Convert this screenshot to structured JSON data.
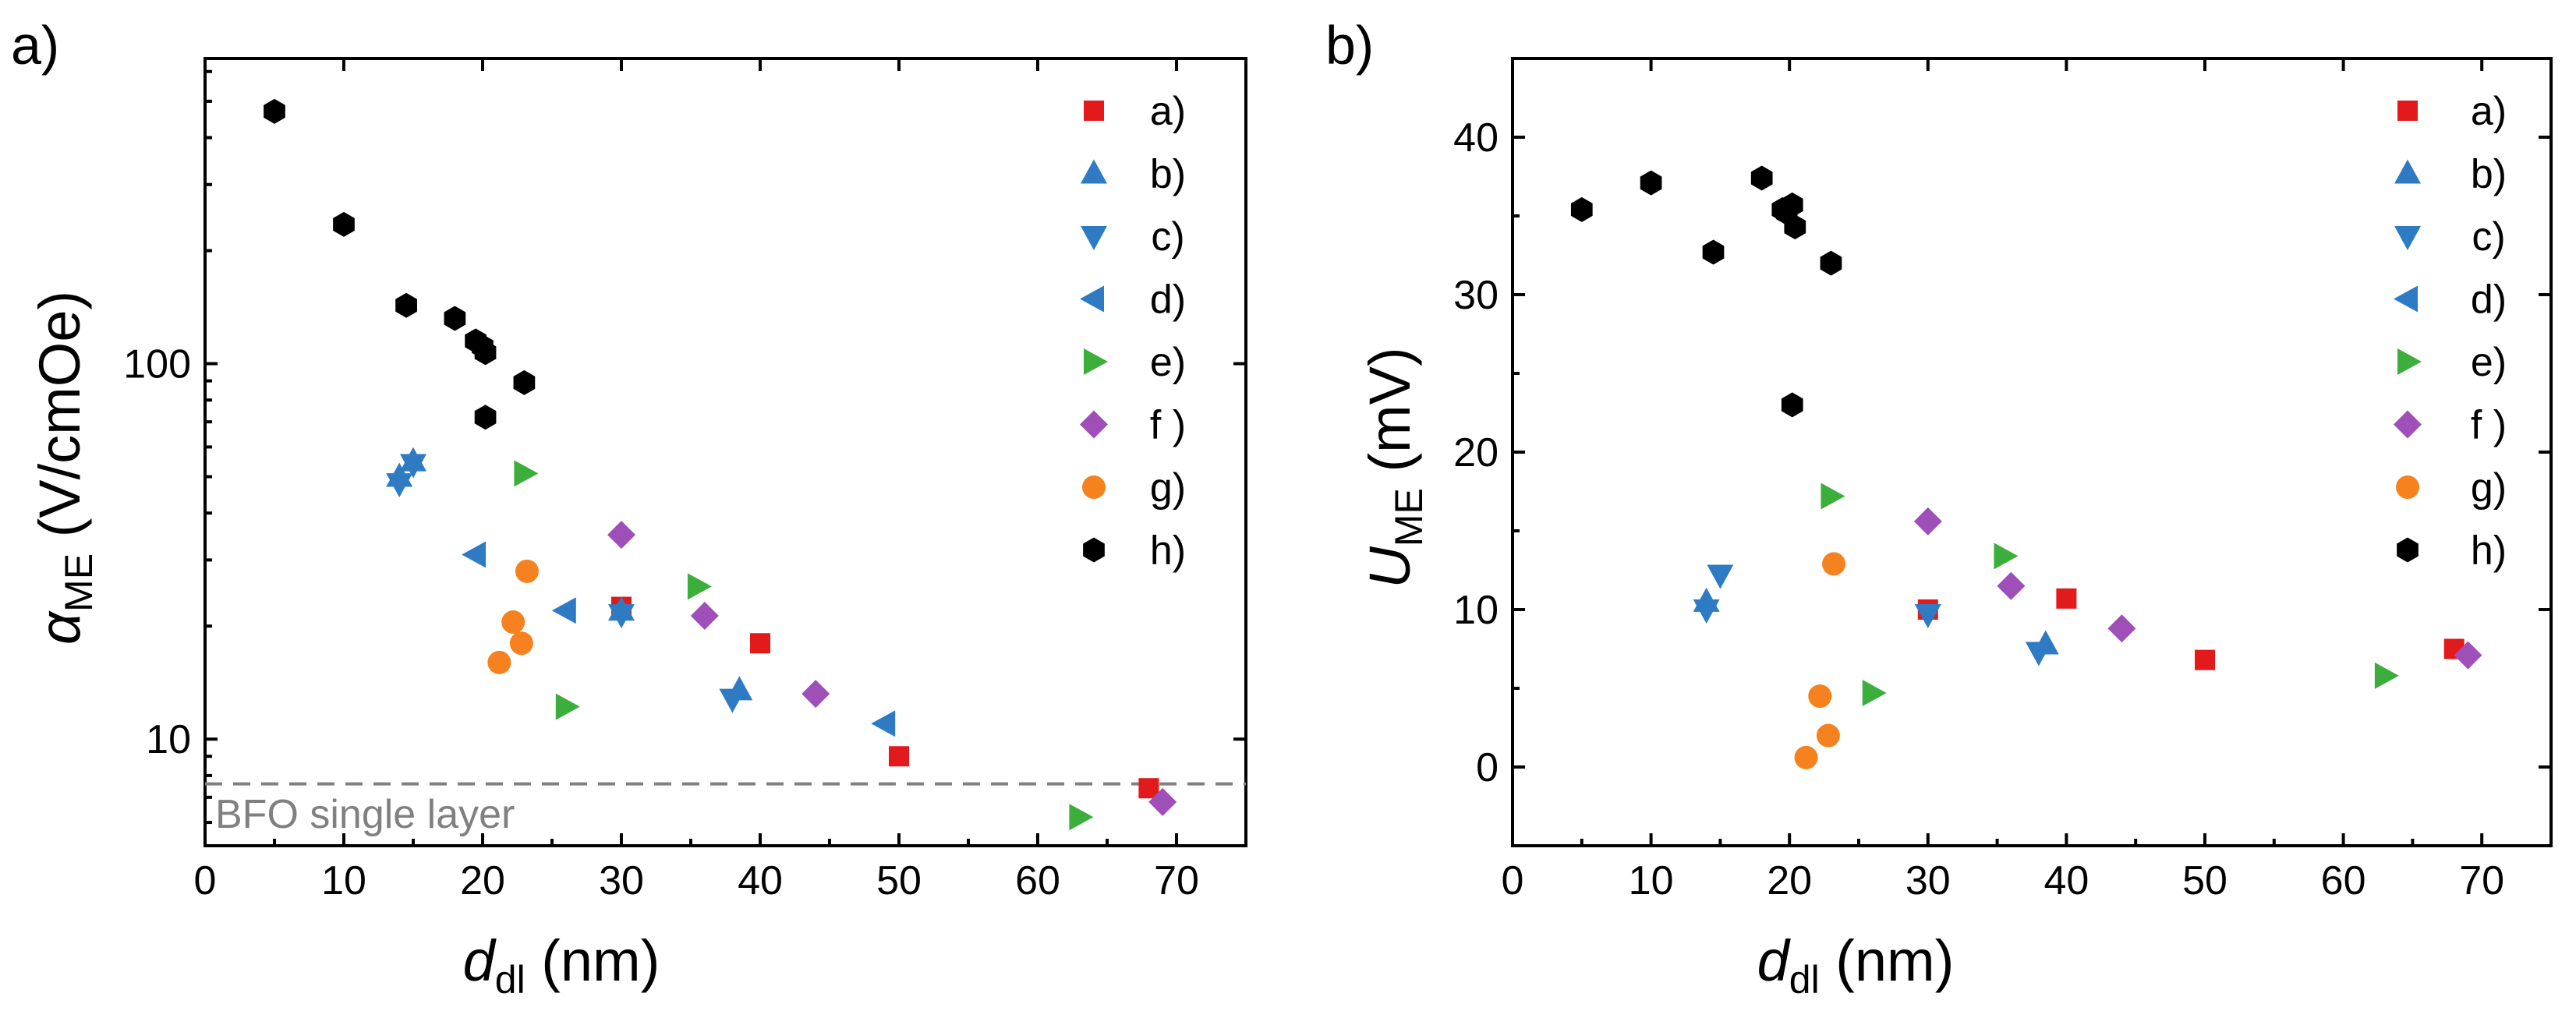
{
  "chart_data": [
    {
      "type": "scatter",
      "panel_label": "a)",
      "xlabel": {
        "symbol": "d",
        "subscript": "dl",
        "unit": " (nm)"
      },
      "ylabel": {
        "symbol": "α",
        "subscript": "ME",
        "unit": " (V/cmOe)"
      },
      "xlim": [
        0,
        75
      ],
      "ylim": [
        5.2,
        650
      ],
      "yscale": "log",
      "xticks": [
        0,
        10,
        20,
        30,
        40,
        50,
        60,
        70
      ],
      "yticks": [
        10,
        100
      ],
      "legend_position": "top-right",
      "reference_line": {
        "y": 7.6,
        "label": "BFO single layer",
        "color": "#808080"
      },
      "series": [
        {
          "name": "a)",
          "marker": "square",
          "color": "#e31a1c",
          "points": [
            [
              30,
              22.5
            ],
            [
              40,
              18
            ],
            [
              50,
              9
            ],
            [
              68,
              7.4
            ]
          ]
        },
        {
          "name": "b)",
          "marker": "triangle-up",
          "color": "#2e7bc4",
          "points": [
            [
              14,
              50
            ],
            [
              15,
              55
            ],
            [
              30,
              22
            ],
            [
              38.5,
              13.5
            ]
          ]
        },
        {
          "name": "c)",
          "marker": "triangle-down",
          "color": "#2e7bc4",
          "points": [
            [
              14,
              48
            ],
            [
              15,
              54
            ],
            [
              30,
              21.5
            ],
            [
              38,
              12.8
            ]
          ]
        },
        {
          "name": "d)",
          "marker": "triangle-left",
          "color": "#2e7bc4",
          "points": [
            [
              19.5,
              31
            ],
            [
              26,
              22
            ],
            [
              49,
              11
            ]
          ]
        },
        {
          "name": "e)",
          "marker": "triangle-right",
          "color": "#3cae3c",
          "points": [
            [
              23,
              51
            ],
            [
              35.5,
              25.5
            ],
            [
              26,
              12.2
            ],
            [
              63,
              6.2
            ]
          ]
        },
        {
          "name": "f )",
          "marker": "diamond",
          "color": "#9e4fb8",
          "points": [
            [
              30,
              35
            ],
            [
              36,
              21.3
            ],
            [
              44,
              13.2
            ],
            [
              69,
              6.8
            ]
          ]
        },
        {
          "name": "g)",
          "marker": "circle",
          "color": "#f5821f",
          "points": [
            [
              23.2,
              28
            ],
            [
              22.2,
              20.5
            ],
            [
              22.8,
              18
            ],
            [
              21.2,
              16
            ]
          ]
        },
        {
          "name": "h)",
          "marker": "hexagon",
          "color": "#000000",
          "points": [
            [
              5,
              470
            ],
            [
              10,
              235
            ],
            [
              14.5,
              143
            ],
            [
              18,
              132
            ],
            [
              19.5,
              115
            ],
            [
              20.2,
              107
            ],
            [
              20,
              111
            ],
            [
              23,
              89
            ],
            [
              20.2,
              72
            ]
          ]
        }
      ]
    },
    {
      "type": "scatter",
      "panel_label": "b)",
      "xlabel": {
        "symbol": "d",
        "subscript": "dl",
        "unit": " (nm)"
      },
      "ylabel": {
        "symbol": "U",
        "subscript": "ME",
        "unit": " (mV)"
      },
      "xlim": [
        0,
        75
      ],
      "ylim": [
        -5,
        45
      ],
      "yscale": "linear",
      "xticks": [
        0,
        10,
        20,
        30,
        40,
        50,
        60,
        70
      ],
      "yticks": [
        0,
        10,
        20,
        30,
        40
      ],
      "legend_position": "top-right",
      "series": [
        {
          "name": "a)",
          "marker": "square",
          "color": "#e31a1c",
          "points": [
            [
              30,
              10
            ],
            [
              40,
              10.7
            ],
            [
              50,
              6.8
            ],
            [
              68,
              7.5
            ]
          ]
        },
        {
          "name": "b)",
          "marker": "triangle-up",
          "color": "#2e7bc4",
          "points": [
            [
              14,
              10.5
            ],
            [
              38.5,
              7.8
            ]
          ]
        },
        {
          "name": "c)",
          "marker": "triangle-down",
          "color": "#2e7bc4",
          "points": [
            [
              14,
              10
            ],
            [
              15,
              12.2
            ],
            [
              30,
              9.7
            ],
            [
              38,
              7.3
            ]
          ]
        },
        {
          "name": "d)",
          "marker": "triangle-left",
          "color": "#2e7bc4",
          "points": []
        },
        {
          "name": "e)",
          "marker": "triangle-right",
          "color": "#3cae3c",
          "points": [
            [
              23,
              17.2
            ],
            [
              35.5,
              13.4
            ],
            [
              26,
              4.7
            ],
            [
              63,
              5.8
            ]
          ]
        },
        {
          "name": "f )",
          "marker": "diamond",
          "color": "#9e4fb8",
          "points": [
            [
              30,
              15.6
            ],
            [
              36,
              11.5
            ],
            [
              44,
              8.8
            ],
            [
              69,
              7.1
            ]
          ]
        },
        {
          "name": "g)",
          "marker": "circle",
          "color": "#f5821f",
          "points": [
            [
              23.2,
              12.9
            ],
            [
              22.2,
              4.5
            ],
            [
              22.8,
              2
            ],
            [
              21.2,
              0.6
            ]
          ]
        },
        {
          "name": "h)",
          "marker": "hexagon",
          "color": "#000000",
          "points": [
            [
              5,
              35.4
            ],
            [
              10,
              37.1
            ],
            [
              14.5,
              32.7
            ],
            [
              18,
              37.4
            ],
            [
              19.5,
              35.4
            ],
            [
              19.8,
              35.2
            ],
            [
              20.2,
              35.7
            ],
            [
              20.4,
              34.3
            ],
            [
              23,
              32
            ],
            [
              20.2,
              23
            ]
          ]
        }
      ]
    }
  ]
}
